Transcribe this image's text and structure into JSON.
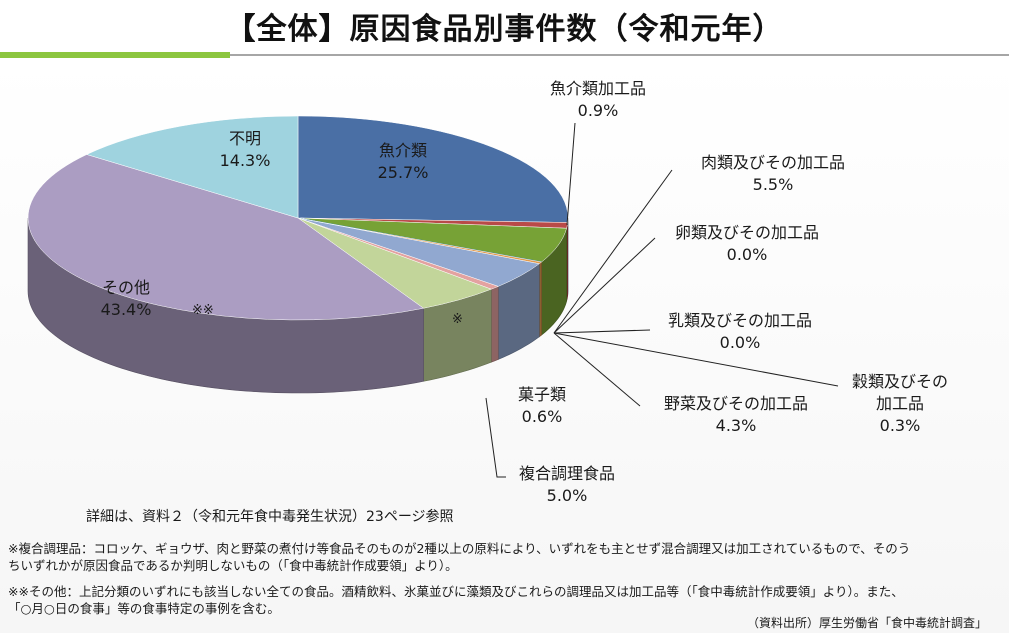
{
  "header": {
    "title": "【全体】原因食品別事件数（令和元年）"
  },
  "chart_data": {
    "type": "pie",
    "title": "【全体】原因食品別事件数（令和元年）",
    "slices": [
      {
        "label": "魚介類",
        "value": 25.7,
        "label_text": "25.7%",
        "color": "#4a6fa5"
      },
      {
        "label": "魚介類加工品",
        "value": 0.9,
        "label_text": "0.9%",
        "color": "#b94a48"
      },
      {
        "label": "肉類及びその加工品",
        "value": 5.5,
        "label_text": "5.5%",
        "color": "#77a236"
      },
      {
        "label": "卵類及びその加工品",
        "value": 0.0,
        "label_text": "0.0%",
        "color": "#6b5a8e"
      },
      {
        "label": "乳類及びその加工品",
        "value": 0.0,
        "label_text": "0.0%",
        "color": "#3aa0b8"
      },
      {
        "label": "穀類及びその加工品",
        "value": 0.3,
        "label_text": "0.3%",
        "color": "#e39a4d"
      },
      {
        "label": "野菜及びその加工品",
        "value": 4.3,
        "label_text": "4.3%",
        "color": "#91a8d0"
      },
      {
        "label": "菓子類",
        "value": 0.6,
        "label_text": "0.6%",
        "color": "#e3a2a0"
      },
      {
        "label": "複合調理食品",
        "value": 5.0,
        "label_text": "5.0%",
        "color": "#c2d59a"
      },
      {
        "label": "その他",
        "value": 43.4,
        "label_text": "43.4%",
        "color": "#ab9dc2"
      },
      {
        "label": "不明",
        "value": 14.3,
        "label_text": "14.3%",
        "color": "#9fd3df"
      }
    ],
    "markers": {
      "complex_food": "※",
      "other": "※※"
    }
  },
  "labels": {
    "gyokai": {
      "name": "魚介類",
      "pct": "25.7%"
    },
    "gyokai_kakou": {
      "name": "魚介類加工品",
      "pct": "0.9%"
    },
    "niku": {
      "name": "肉類及びその加工品",
      "pct": "5.5%"
    },
    "tamago": {
      "name": "卵類及びその加工品",
      "pct": "0.0%"
    },
    "nyu": {
      "name": "乳類及びその加工品",
      "pct": "0.0%"
    },
    "koku": {
      "name1": "穀類及びその",
      "name2": "加工品",
      "pct": "0.3%"
    },
    "yasai": {
      "name": "野菜及びその加工品",
      "pct": "4.3%"
    },
    "kashi": {
      "name": "菓子類",
      "pct": "0.6%"
    },
    "fukugou": {
      "name": "複合調理食品",
      "pct": "5.0%"
    },
    "sonota": {
      "name": "その他",
      "pct": "43.4%"
    },
    "fumei": {
      "name": "不明",
      "pct": "14.3%"
    }
  },
  "detail_note": "詳細は、資料２（令和元年食中毒発生状況）23ページ参照",
  "notes": {
    "note1_line1": "※複合調理品：コロッケ、ギョウザ、肉と野菜の煮付け等食品そのものが2種以上の原料により、いずれをも主とせず混合調理又は加工されているもので、そのう",
    "note1_line2": "ちいずれかが原因食品であるか判明しないもの（「食中毒統計作成要領」より）。",
    "note2_line1": "※※その他：上記分類のいずれにも該当しない全ての食品。酒精飲料、氷菓並びに藻類及びこれらの調理品又は加工品等（「食中毒統計作成要領」より）。また、",
    "note2_line2": "「○月○日の食事」等の食事特定の事例を含む。"
  },
  "source": "（資料出所）厚生労働省「食中毒統計調査」"
}
